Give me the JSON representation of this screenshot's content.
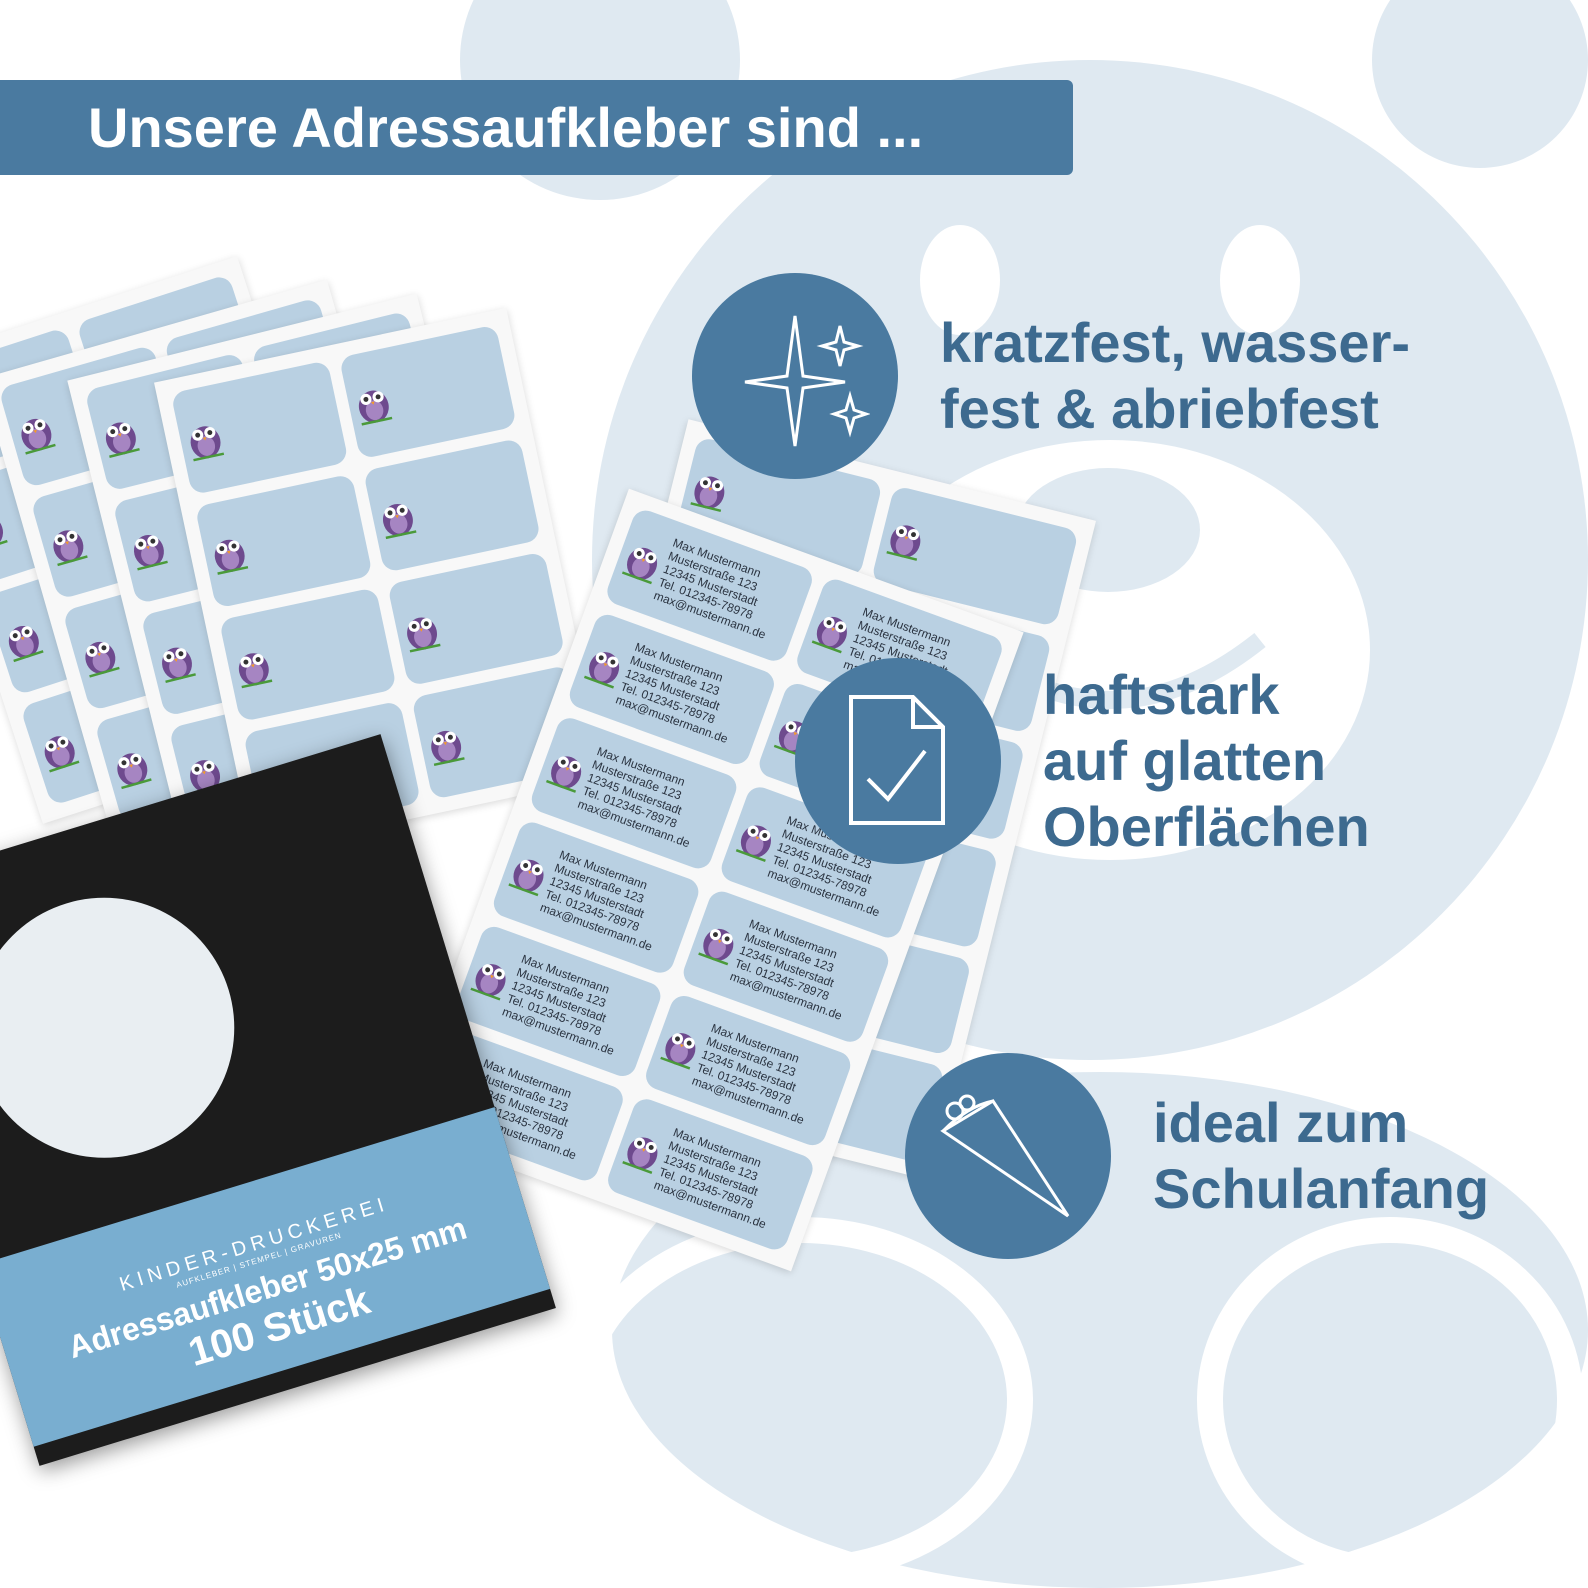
{
  "header": {
    "title": "Unsere Adressaufkleber sind ..."
  },
  "features": [
    {
      "icon": "sparkles-icon",
      "text": "kratzfest, wasser-\nfest & abriebfest"
    },
    {
      "icon": "document-check-icon",
      "text": "haftstark\nauf glatten\nOberflächen"
    },
    {
      "icon": "school-cone-icon",
      "text": "ideal zum\nSchulanfang"
    }
  ],
  "label": {
    "name": "Max Mustermann",
    "street": "Musterstraße 123",
    "city": "12345 Musterstadt",
    "phone": "Tel. 012345-78978",
    "email": "max@mustermann.de"
  },
  "package": {
    "brand": "KINDER-DRUCKEREI",
    "brand_sub": "AUFKLEBER | STEMPEL | GRAVUREN",
    "title": "Adressaufkleber 50x25 mm",
    "count": "100 Stück"
  },
  "colors": {
    "accent": "#4a7aa0",
    "text": "#3d6a8f",
    "bear": "#dfe9f1",
    "label": "#b9d0e2",
    "band": "#79aed0"
  }
}
